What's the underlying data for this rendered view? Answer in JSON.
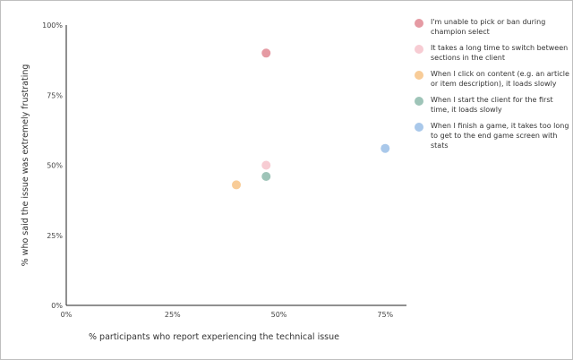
{
  "chart_data": {
    "type": "scatter",
    "title": "",
    "xlabel": "% participants who report experiencing the technical issue",
    "ylabel": "% who said the issue was extremely frustrating",
    "xlim": [
      0,
      80
    ],
    "ylim": [
      0,
      100
    ],
    "x_ticks": [
      "0%",
      "25%",
      "50%",
      "75%"
    ],
    "x_tick_values": [
      0,
      25,
      50,
      75
    ],
    "y_ticks": [
      "0%",
      "25%",
      "50%",
      "75%",
      "100%"
    ],
    "y_tick_values": [
      0,
      25,
      50,
      75,
      100
    ],
    "grid": false,
    "legend_position": "right",
    "series": [
      {
        "name": "I'm unable to pick or ban during champion select",
        "color": "#e59aa3",
        "points": [
          {
            "x": 47,
            "y": 90
          }
        ]
      },
      {
        "name": "It takes a long time to switch between sections in the client",
        "color": "#f7ccd3",
        "points": [
          {
            "x": 47,
            "y": 50
          }
        ]
      },
      {
        "name": "When I click on content (e.g. an article or item description), it loads slowly",
        "color": "#f8cc98",
        "points": [
          {
            "x": 40,
            "y": 43
          }
        ]
      },
      {
        "name": "When I start the client for the first time, it loads slowly",
        "color": "#9ec4b8",
        "points": [
          {
            "x": 47,
            "y": 46
          }
        ]
      },
      {
        "name": "When I finish a game, it takes too long to get to the end game screen with stats",
        "color": "#a9c8ea",
        "points": [
          {
            "x": 75,
            "y": 56
          }
        ]
      }
    ]
  }
}
